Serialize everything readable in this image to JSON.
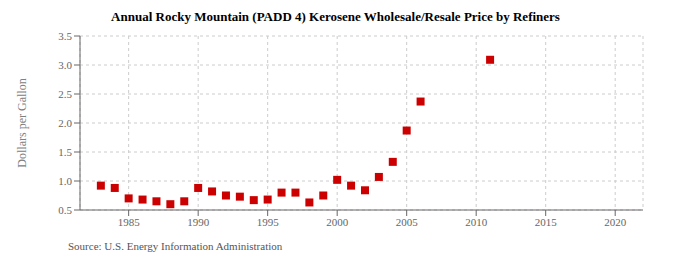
{
  "chart_data": {
    "type": "scatter",
    "title": "Annual Rocky Mountain (PADD 4) Kerosene Wholesale/Resale Price by Refiners",
    "y_label": "Dollars per Gallon",
    "annotation": "Source: U.S. Energy Information Administration",
    "x": [
      1983,
      1984,
      1985,
      1986,
      1987,
      1988,
      1989,
      1990,
      1991,
      1992,
      1993,
      1994,
      1995,
      1996,
      1997,
      1998,
      1999,
      2000,
      2001,
      2002,
      2003,
      2004,
      2005,
      2006,
      2011
    ],
    "values": [
      0.92,
      0.88,
      0.7,
      0.68,
      0.65,
      0.6,
      0.65,
      0.88,
      0.82,
      0.75,
      0.73,
      0.67,
      0.68,
      0.8,
      0.8,
      0.63,
      0.75,
      1.02,
      0.92,
      0.84,
      1.07,
      1.33,
      1.87,
      2.37,
      3.09
    ],
    "color": "#cc0000",
    "marker": "square",
    "xlim": [
      1981.5,
      2022
    ],
    "ylim": [
      0.5,
      3.5
    ],
    "xticks": [
      1985,
      1990,
      1995,
      2000,
      2005,
      2010,
      2015,
      2020
    ],
    "yticks": [
      0.5,
      {
        "value": 1.0,
        "label": "1.0"
      },
      1.5,
      {
        "value": 2.0,
        "label": "2.0"
      },
      2.5,
      {
        "value": 3.0,
        "label": "3.0"
      },
      3.5
    ],
    "grid": true
  }
}
